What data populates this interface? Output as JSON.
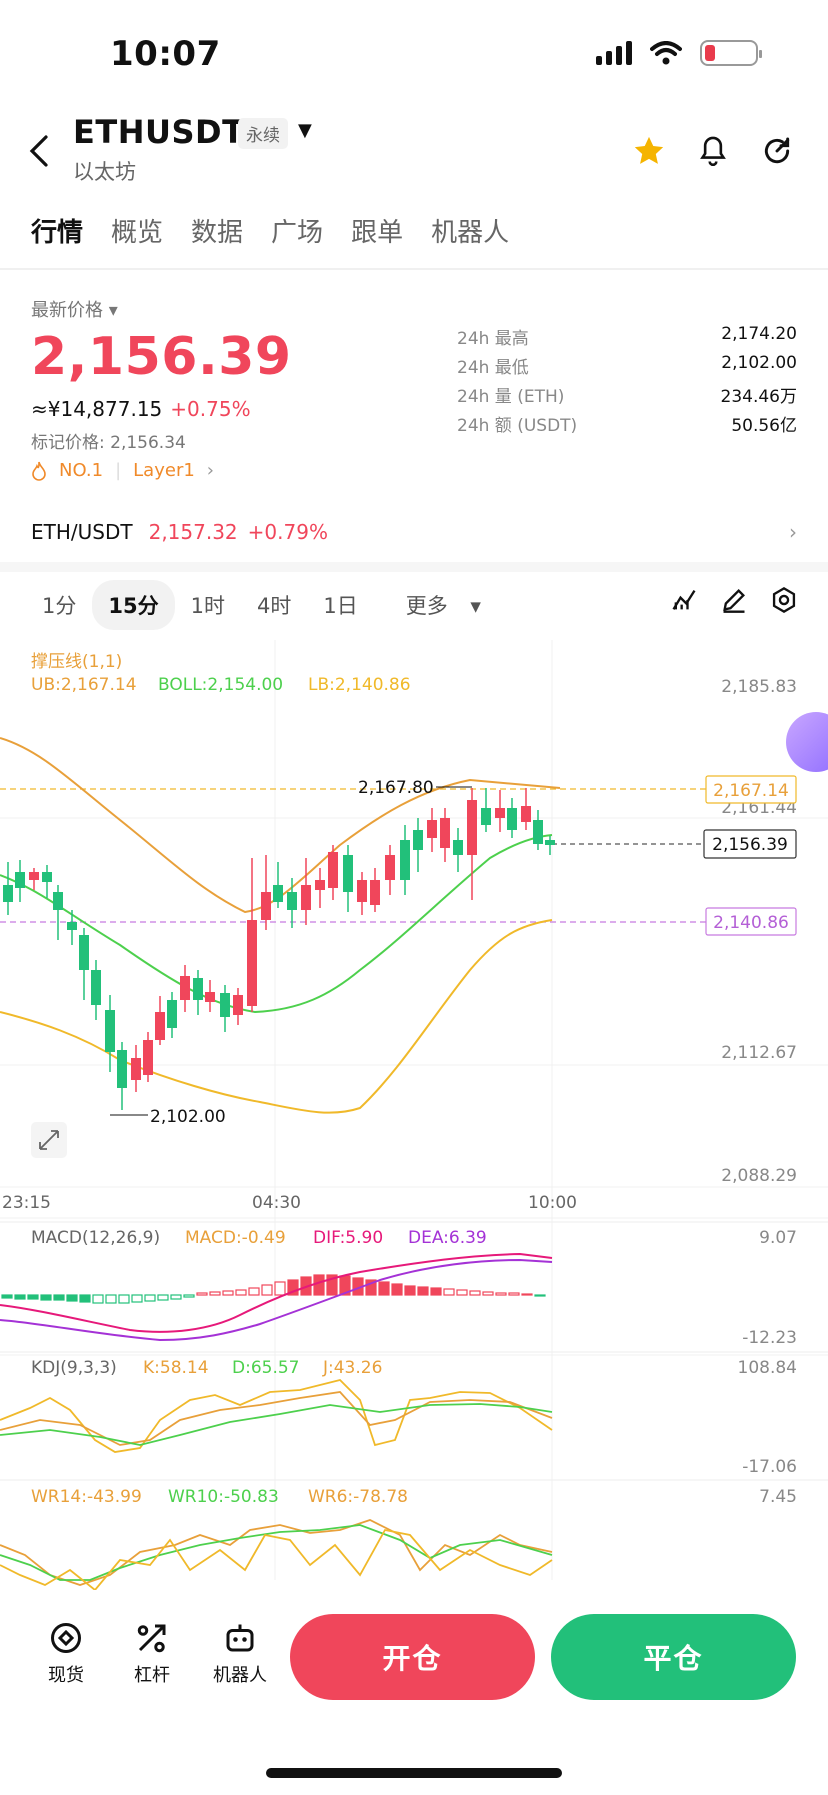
{
  "status_bar": {
    "time": "10:07"
  },
  "header": {
    "symbol": "ETHUSDT",
    "contract_type": "永续",
    "subtitle": "以太坊",
    "icons": [
      "back-icon",
      "star-icon",
      "bell-icon",
      "share-icon"
    ]
  },
  "tabs": [
    "行情",
    "概览",
    "数据",
    "广场",
    "跟单",
    "机器人"
  ],
  "price": {
    "label": "最新价格",
    "last": "2,156.39",
    "cny": "≈¥14,877.15",
    "change": "+0.75%",
    "mark": "标记价格: 2,156.34",
    "rank": "NO.1",
    "sector": "Layer1"
  },
  "stats": [
    {
      "k": "24h  最高",
      "v": "2,174.20"
    },
    {
      "k": "24h  最低",
      "v": "2,102.00"
    },
    {
      "k": "24h  量 (ETH)",
      "v": "234.46万"
    },
    {
      "k": "24h  额 (USDT)",
      "v": "50.56亿"
    }
  ],
  "spot": {
    "pair": "ETH/USDT",
    "price": "2,157.32",
    "change": "+0.79%"
  },
  "intervals": [
    "1分",
    "15分",
    "1时",
    "4时",
    "1日",
    "更多"
  ],
  "main_chart": {
    "indicator": "撑压线(1,1)",
    "ub": "UB:2,167.14",
    "boll": "BOLL:2,154.00",
    "lb": "LB:2,140.86",
    "y_ticks": [
      "2,185.83",
      "2,161.44",
      "2,112.67",
      "2,088.29"
    ],
    "x_ticks": [
      "23:15",
      "04:30",
      "10:00"
    ],
    "high_marker": "2,167.80",
    "low_marker": "2,102.00",
    "ub_tag": "2,167.14",
    "last_tag": "2,156.39",
    "lb_tag": "2,140.86"
  },
  "macd": {
    "label": "MACD(12,26,9)",
    "macd": "MACD:-0.49",
    "dif": "DIF:5.90",
    "dea": "DEA:6.39",
    "top": "9.07",
    "bottom": "-12.23"
  },
  "kdj": {
    "label": "KDJ(9,3,3)",
    "k": "K:58.14",
    "d": "D:65.57",
    "j": "J:43.26",
    "top": "108.84",
    "bottom": "-17.06"
  },
  "wr": {
    "wr14": "WR14:-43.99",
    "wr10": "WR10:-50.83",
    "wr6": "WR6:-78.78",
    "top": "7.45"
  },
  "bottom_nav": {
    "spot": "现货",
    "margin": "杠杆",
    "bot": "机器人",
    "open": "开仓",
    "close": "平仓"
  },
  "colors": {
    "up": "#f0465b",
    "down": "#22c07a",
    "ub": "#e8a03a",
    "mid": "#4dd04d",
    "lb": "#f0b92a"
  }
}
